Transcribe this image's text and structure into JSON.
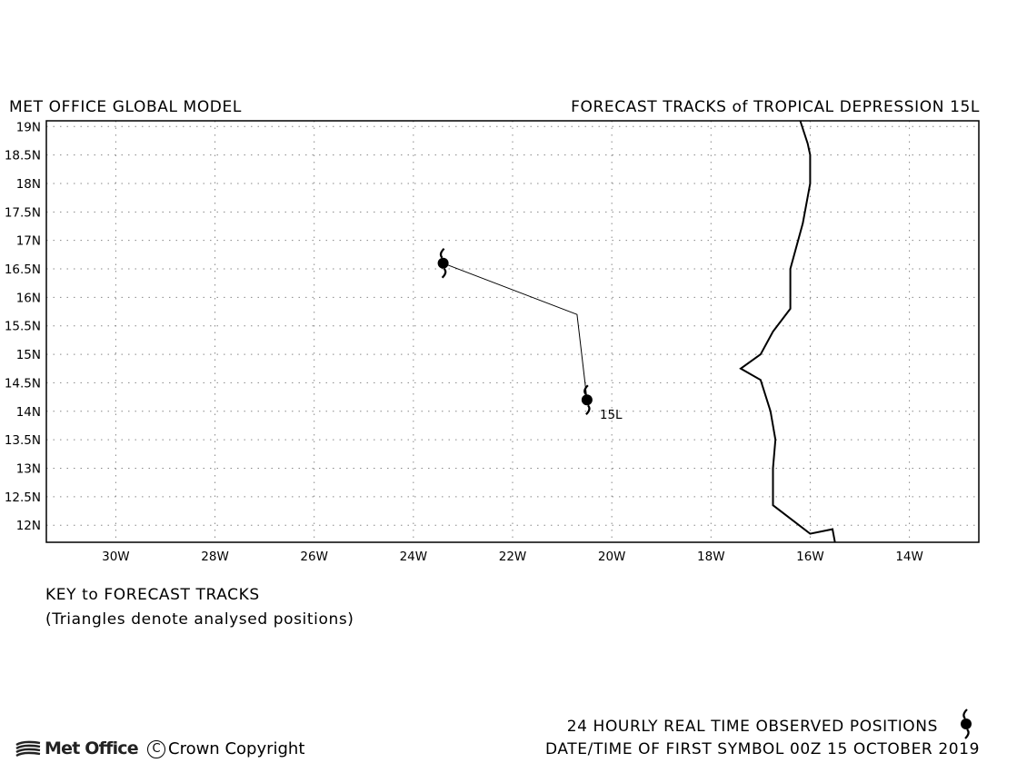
{
  "header": {
    "left_title": "MET OFFICE GLOBAL MODEL",
    "right_title": "FORECAST TRACKS of TROPICAL DEPRESSION 15L"
  },
  "map": {
    "lon_range": [
      -31.4,
      -12.6
    ],
    "lat_range": [
      11.7,
      19.1
    ],
    "lat_ticks": [
      {
        "value": 19,
        "label": "19N"
      },
      {
        "value": 18.5,
        "label": "18.5N"
      },
      {
        "value": 18,
        "label": "18N"
      },
      {
        "value": 17.5,
        "label": "17.5N"
      },
      {
        "value": 17,
        "label": "17N"
      },
      {
        "value": 16.5,
        "label": "16.5N"
      },
      {
        "value": 16,
        "label": "16N"
      },
      {
        "value": 15.5,
        "label": "15.5N"
      },
      {
        "value": 15,
        "label": "15N"
      },
      {
        "value": 14.5,
        "label": "14.5N"
      },
      {
        "value": 14,
        "label": "14N"
      },
      {
        "value": 13.5,
        "label": "13.5N"
      },
      {
        "value": 13,
        "label": "13N"
      },
      {
        "value": 12.5,
        "label": "12.5N"
      },
      {
        "value": 12,
        "label": "12N"
      }
    ],
    "lon_ticks": [
      {
        "value": -30,
        "label": "30W"
      },
      {
        "value": -28,
        "label": "28W"
      },
      {
        "value": -26,
        "label": "26W"
      },
      {
        "value": -24,
        "label": "24W"
      },
      {
        "value": -22,
        "label": "22W"
      },
      {
        "value": -20,
        "label": "20W"
      },
      {
        "value": -18,
        "label": "18W"
      },
      {
        "value": -16,
        "label": "16W"
      },
      {
        "value": -14,
        "label": "14W"
      }
    ],
    "grid": true,
    "coastline": [
      [
        -16.2,
        19.1
      ],
      [
        -16.05,
        18.7
      ],
      [
        -16.0,
        18.5
      ],
      [
        -16.0,
        18.0
      ],
      [
        -16.15,
        17.3
      ],
      [
        -16.4,
        16.5
      ],
      [
        -16.4,
        15.8
      ],
      [
        -16.75,
        15.4
      ],
      [
        -17.0,
        15.0
      ],
      [
        -17.4,
        14.75
      ],
      [
        -17.0,
        14.55
      ],
      [
        -16.8,
        14.0
      ],
      [
        -16.7,
        13.5
      ],
      [
        -16.75,
        13.0
      ],
      [
        -16.75,
        12.35
      ],
      [
        -16.0,
        11.85
      ],
      [
        -15.55,
        11.93
      ],
      [
        -15.5,
        11.7
      ]
    ],
    "forecast_track": {
      "storm_id": "15L",
      "points": [
        [
          -20.5,
          14.2
        ],
        [
          -20.7,
          15.7
        ],
        [
          -23.4,
          16.6
        ]
      ]
    }
  },
  "key": {
    "title": "KEY to FORECAST TRACKS",
    "note": "(Triangles denote analysed positions)"
  },
  "footer": {
    "observed_label": "24 HOURLY REAL TIME OBSERVED POSITIONS",
    "datetime_label": "DATE/TIME OF FIRST SYMBOL 00Z 15 OCTOBER 2019",
    "logo_text": "Met Office",
    "copyright_symbol": "C",
    "copyright_text": "Crown Copyright"
  }
}
